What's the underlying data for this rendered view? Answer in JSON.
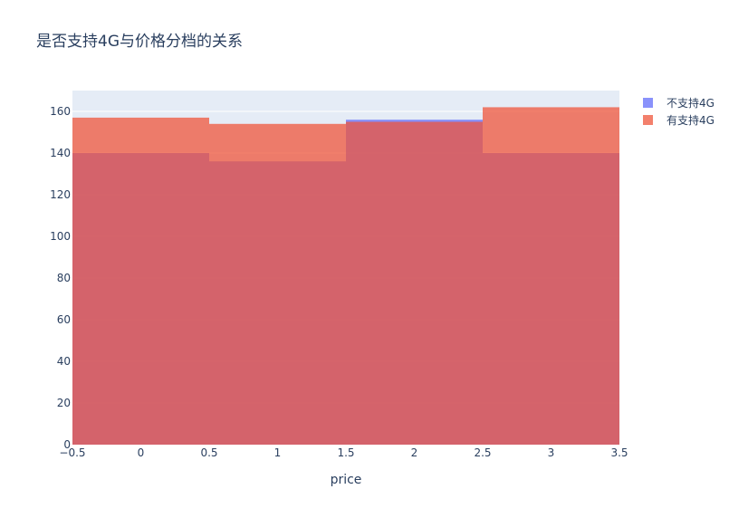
{
  "chart_data": {
    "type": "bar",
    "title": "是否支持4G与价格分档的关系",
    "xlabel": "price",
    "ylabel": "",
    "barmode": "overlay",
    "bin_edges": [
      -0.5,
      0.5,
      1.5,
      2.5,
      3.5
    ],
    "x": [
      0,
      1,
      2,
      3
    ],
    "xlim": [
      -0.5,
      3.5
    ],
    "ylim": [
      0,
      170
    ],
    "x_ticks": [
      -0.5,
      0,
      0.5,
      1,
      1.5,
      2,
      2.5,
      3,
      3.5
    ],
    "x_tick_labels": [
      "−0.5",
      "0",
      "0.5",
      "1",
      "1.5",
      "2",
      "2.5",
      "3",
      "3.5"
    ],
    "y_ticks": [
      0,
      20,
      40,
      60,
      80,
      100,
      120,
      140,
      160
    ],
    "y_tick_labels": [
      "0",
      "20",
      "40",
      "60",
      "80",
      "100",
      "120",
      "140",
      "160"
    ],
    "grid": true,
    "legend_position": "top-right",
    "series": [
      {
        "name": "不支持4G",
        "values": [
          140,
          136,
          156,
          140
        ],
        "color": "#636efa",
        "opacity": 0.75
      },
      {
        "name": "有支持4G",
        "values": [
          157,
          154,
          155,
          162
        ],
        "color": "#ef553b",
        "opacity": 0.75
      }
    ],
    "plot_background": "#e5ecf6",
    "grid_color": "#ffffff"
  }
}
